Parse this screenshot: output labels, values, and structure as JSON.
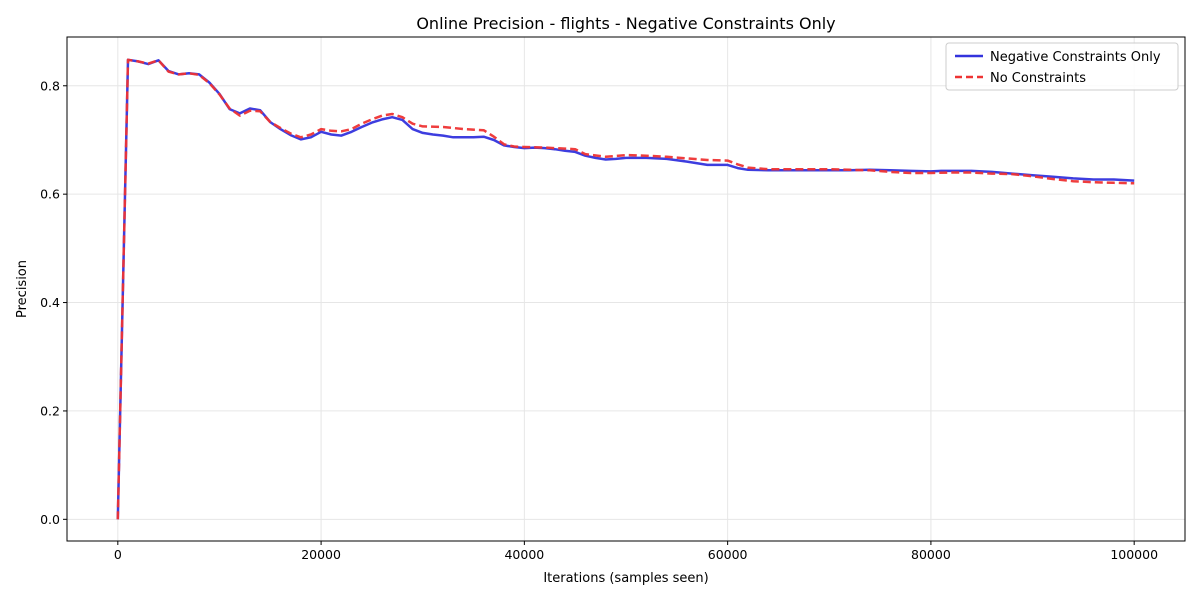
{
  "chart_data": {
    "type": "line",
    "title": "Online Precision - flights - Negative Constraints Only",
    "xlabel": "Iterations (samples seen)",
    "ylabel": "Precision",
    "xlim": [
      -5000,
      105000
    ],
    "ylim": [
      -0.04,
      0.89
    ],
    "xticks": [
      0,
      20000,
      40000,
      60000,
      80000,
      100000
    ],
    "yticks": [
      0.0,
      0.2,
      0.4,
      0.6,
      0.8
    ],
    "xtick_labels": [
      "0",
      "20000",
      "40000",
      "60000",
      "80000",
      "100000"
    ],
    "ytick_labels": [
      "0.0",
      "0.2",
      "0.4",
      "0.6",
      "0.8"
    ],
    "grid": true,
    "legend_position": "top-right",
    "series": [
      {
        "name": "Negative Constraints Only",
        "color": "#3333dd",
        "style": "solid",
        "x": [
          0,
          1000,
          2000,
          3000,
          4000,
          5000,
          6000,
          7000,
          8000,
          9000,
          10000,
          11000,
          12000,
          13000,
          14000,
          15000,
          16000,
          17000,
          18000,
          19000,
          20000,
          21000,
          22000,
          23000,
          24000,
          25000,
          26000,
          27000,
          28000,
          29000,
          30000,
          31000,
          32000,
          33000,
          34000,
          35000,
          36000,
          37000,
          38000,
          39000,
          40000,
          41000,
          42000,
          43000,
          44000,
          45000,
          46000,
          47000,
          48000,
          49000,
          50000,
          52000,
          54000,
          56000,
          58000,
          60000,
          61000,
          62000,
          64000,
          66000,
          68000,
          70000,
          72000,
          74000,
          76000,
          78000,
          80000,
          81000,
          82000,
          84000,
          86000,
          88000,
          90000,
          92000,
          94000,
          96000,
          98000,
          100000
        ],
        "y": [
          0.0,
          0.848,
          0.845,
          0.84,
          0.847,
          0.827,
          0.821,
          0.823,
          0.821,
          0.806,
          0.785,
          0.757,
          0.749,
          0.758,
          0.755,
          0.733,
          0.72,
          0.709,
          0.701,
          0.705,
          0.715,
          0.71,
          0.708,
          0.715,
          0.724,
          0.732,
          0.738,
          0.742,
          0.737,
          0.72,
          0.713,
          0.71,
          0.708,
          0.705,
          0.705,
          0.705,
          0.706,
          0.7,
          0.69,
          0.687,
          0.685,
          0.686,
          0.685,
          0.683,
          0.68,
          0.678,
          0.671,
          0.667,
          0.664,
          0.665,
          0.667,
          0.667,
          0.665,
          0.66,
          0.654,
          0.654,
          0.648,
          0.645,
          0.644,
          0.644,
          0.644,
          0.644,
          0.644,
          0.645,
          0.644,
          0.643,
          0.642,
          0.643,
          0.643,
          0.643,
          0.641,
          0.638,
          0.635,
          0.632,
          0.629,
          0.627,
          0.627,
          0.625
        ]
      },
      {
        "name": "No Constraints",
        "color": "#ee3333",
        "style": "dashed",
        "x": [
          0,
          1000,
          2000,
          3000,
          4000,
          5000,
          6000,
          7000,
          8000,
          9000,
          10000,
          11000,
          12000,
          13000,
          14000,
          15000,
          16000,
          17000,
          18000,
          19000,
          20000,
          21000,
          22000,
          23000,
          24000,
          25000,
          26000,
          27000,
          28000,
          29000,
          30000,
          32000,
          33000,
          34000,
          36000,
          37000,
          38000,
          39000,
          40000,
          42000,
          44000,
          45000,
          46000,
          48000,
          50000,
          52000,
          54000,
          56000,
          58000,
          60000,
          61000,
          62000,
          64000,
          66000,
          68000,
          70000,
          72000,
          74000,
          76000,
          78000,
          80000,
          82000,
          84000,
          86000,
          88000,
          90000,
          92000,
          94000,
          96000,
          98000,
          100000
        ],
        "y": [
          0.0,
          0.848,
          0.845,
          0.841,
          0.847,
          0.826,
          0.821,
          0.823,
          0.82,
          0.805,
          0.784,
          0.758,
          0.745,
          0.754,
          0.753,
          0.733,
          0.722,
          0.712,
          0.705,
          0.71,
          0.72,
          0.717,
          0.716,
          0.72,
          0.73,
          0.738,
          0.745,
          0.748,
          0.742,
          0.73,
          0.725,
          0.724,
          0.722,
          0.72,
          0.718,
          0.706,
          0.692,
          0.688,
          0.687,
          0.686,
          0.684,
          0.683,
          0.674,
          0.669,
          0.672,
          0.671,
          0.669,
          0.666,
          0.663,
          0.662,
          0.655,
          0.649,
          0.646,
          0.646,
          0.646,
          0.646,
          0.645,
          0.644,
          0.641,
          0.639,
          0.639,
          0.64,
          0.64,
          0.638,
          0.637,
          0.633,
          0.628,
          0.624,
          0.622,
          0.621,
          0.62
        ]
      }
    ]
  }
}
